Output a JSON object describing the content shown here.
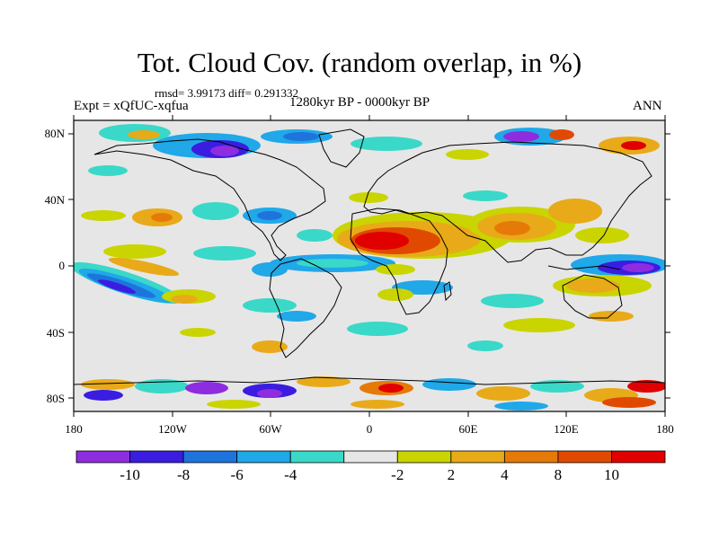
{
  "title": "Tot. Cloud Cov. (random overlap, in %)",
  "stats": "rmsd= 3.99173 diff= 0.291332",
  "experiment": "Expt = xQfUC-xqfua",
  "period": "1280kyr BP - 0000kyr BP",
  "season": "ANN",
  "lat_labels": [
    "80N",
    "40N",
    "0",
    "40S",
    "80S"
  ],
  "lon_labels": [
    "180",
    "120W",
    "60W",
    "0",
    "60E",
    "120E",
    "180"
  ],
  "colorbar": {
    "colors": [
      "#8e2ce0",
      "#3a1de0",
      "#1e74dc",
      "#20a8e8",
      "#3ad8c8",
      "#e6e6e6",
      "#cad400",
      "#e8aa18",
      "#e67a08",
      "#e04a00",
      "#e00000"
    ],
    "labels": [
      "-10",
      "-8",
      "-6",
      "-4",
      "-2",
      "2",
      "4",
      "8",
      "10"
    ]
  }
}
